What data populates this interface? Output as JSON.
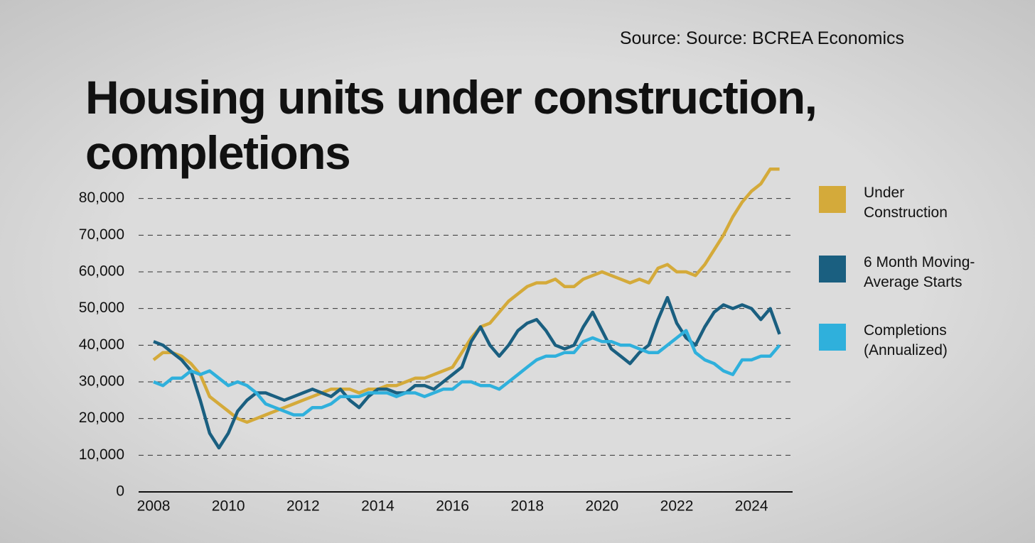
{
  "chart_data": {
    "type": "line",
    "source": "Source: Source: BCREA Economics",
    "title": "Housing units under construction, completions",
    "x": [
      2008,
      2008.25,
      2008.5,
      2008.75,
      2009,
      2009.25,
      2009.5,
      2009.75,
      2010,
      2010.25,
      2010.5,
      2010.75,
      2011,
      2011.25,
      2011.5,
      2011.75,
      2012,
      2012.25,
      2012.5,
      2012.75,
      2013,
      2013.25,
      2013.5,
      2013.75,
      2014,
      2014.25,
      2014.5,
      2014.75,
      2015,
      2015.25,
      2015.5,
      2015.75,
      2016,
      2016.25,
      2016.5,
      2016.75,
      2017,
      2017.25,
      2017.5,
      2017.75,
      2018,
      2018.25,
      2018.5,
      2018.75,
      2019,
      2019.25,
      2019.5,
      2019.75,
      2020,
      2020.25,
      2020.5,
      2020.75,
      2021,
      2021.25,
      2021.5,
      2021.75,
      2022,
      2022.25,
      2022.5,
      2022.75,
      2023,
      2023.25,
      2023.5,
      2023.75,
      2024,
      2024.25,
      2024.5,
      2024.75
    ],
    "series": [
      {
        "name": "Under Construction",
        "color": "#d4aa3a",
        "values": [
          36000,
          38000,
          38000,
          37000,
          35000,
          32000,
          26000,
          24000,
          22000,
          20000,
          19000,
          20000,
          21000,
          22000,
          23000,
          24000,
          25000,
          26000,
          27000,
          28000,
          28000,
          28000,
          27000,
          28000,
          28000,
          29000,
          29000,
          30000,
          31000,
          31000,
          32000,
          33000,
          34000,
          38000,
          42000,
          45000,
          46000,
          49000,
          52000,
          54000,
          56000,
          57000,
          57000,
          58000,
          56000,
          56000,
          58000,
          59000,
          60000,
          59000,
          58000,
          57000,
          58000,
          57000,
          61000,
          62000,
          60000,
          60000,
          59000,
          62000,
          66000,
          70000,
          75000,
          79000,
          82000,
          84000,
          88000,
          88000
        ]
      },
      {
        "name": "6 Month Moving-Average Starts",
        "color": "#1a5f80",
        "values": [
          41000,
          40000,
          38000,
          36000,
          33000,
          25000,
          16000,
          12000,
          16000,
          22000,
          25000,
          27000,
          27000,
          26000,
          25000,
          26000,
          27000,
          28000,
          27000,
          26000,
          28000,
          25000,
          23000,
          26000,
          28000,
          28000,
          27000,
          27000,
          29000,
          29000,
          28000,
          30000,
          32000,
          34000,
          41000,
          45000,
          40000,
          37000,
          40000,
          44000,
          46000,
          47000,
          44000,
          40000,
          39000,
          40000,
          45000,
          49000,
          44000,
          39000,
          37000,
          35000,
          38000,
          40000,
          47000,
          53000,
          46000,
          42000,
          40000,
          45000,
          49000,
          51000,
          50000,
          51000,
          50000,
          47000,
          50000,
          43000
        ]
      },
      {
        "name": "Completions (Annualized)",
        "color": "#2fb0dc",
        "values": [
          30000,
          29000,
          31000,
          31000,
          33000,
          32000,
          33000,
          31000,
          29000,
          30000,
          29000,
          27000,
          24000,
          23000,
          22000,
          21000,
          21000,
          23000,
          23000,
          24000,
          26000,
          26000,
          26000,
          27000,
          27000,
          27000,
          26000,
          27000,
          27000,
          26000,
          27000,
          28000,
          28000,
          30000,
          30000,
          29000,
          29000,
          28000,
          30000,
          32000,
          34000,
          36000,
          37000,
          37000,
          38000,
          38000,
          41000,
          42000,
          41000,
          41000,
          40000,
          40000,
          39000,
          38000,
          38000,
          40000,
          42000,
          44000,
          38000,
          36000,
          35000,
          33000,
          32000,
          36000,
          36000,
          37000,
          37000,
          40000
        ]
      }
    ],
    "xlim": [
      2007.6,
      2025.1
    ],
    "xticks": [
      2008,
      2010,
      2012,
      2014,
      2016,
      2018,
      2020,
      2022,
      2024
    ],
    "ylim": [
      0,
      90000
    ],
    "yticks": [
      0,
      {
        "value": 10000,
        "label": "10,000"
      },
      {
        "value": 20000,
        "label": "20,000"
      },
      {
        "value": 30000,
        "label": "30,000"
      },
      {
        "value": 40000,
        "label": "40,000"
      },
      {
        "value": 50000,
        "label": "50,000"
      },
      {
        "value": 60000,
        "label": "60,000"
      },
      {
        "value": 70000,
        "label": "70,000"
      },
      {
        "value": 80000,
        "label": "80,000"
      }
    ],
    "grid": true
  }
}
